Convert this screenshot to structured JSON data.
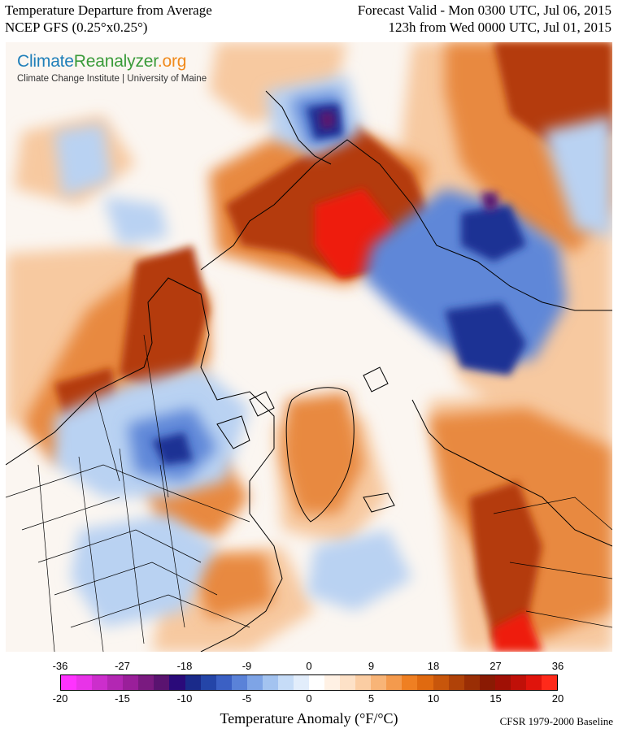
{
  "header": {
    "title_left_1": "Temperature Departure from Average",
    "title_left_2": "NCEP GFS (0.25°x0.25°)",
    "title_right_1": "Forecast Valid - Mon 0300 UTC, Jul 06, 2015",
    "title_right_2": "123h from Wed 0000 UTC, Jul 01, 2015"
  },
  "logo": {
    "part1": "Climate",
    "part2": "Reanalyzer",
    "part3": ".org",
    "subtitle": "Climate Change Institute | University of Maine"
  },
  "colorbar": {
    "fahrenheit_ticks": [
      "-36",
      "-27",
      "-18",
      "-9",
      "0",
      "9",
      "18",
      "27",
      "36"
    ],
    "celsius_ticks": [
      "-20",
      "-15",
      "-10",
      "-5",
      "0",
      "5",
      "10",
      "15",
      "20"
    ],
    "colors": [
      "#ff33ff",
      "#e833e8",
      "#cc2ecc",
      "#b327b3",
      "#9a1f9a",
      "#7a1a80",
      "#5a1370",
      "#2a0a7a",
      "#1a2a8a",
      "#2445a8",
      "#3b60c4",
      "#5a82d8",
      "#7ea4e6",
      "#a3c3f0",
      "#c6dcf7",
      "#e2edfb",
      "#ffffff",
      "#fff1e4",
      "#fde1c7",
      "#fbcda3",
      "#f8b477",
      "#f49a4d",
      "#ef7f22",
      "#e06a10",
      "#c8560b",
      "#b04208",
      "#9a2e05",
      "#8a1a03",
      "#a01005",
      "#c01008",
      "#e0140c",
      "#ff2a1a"
    ],
    "label": "Temperature Anomaly (°F/°C)",
    "baseline": "CFSR 1979-2000 Baseline"
  },
  "map": {
    "background": "#fbf6f1",
    "warm_strong": "#b43a0c",
    "warm_mid": "#e8893f",
    "warm_light": "#f7c9a0",
    "hot_core": "#ee1a10",
    "cold_light": "#b9d2f2",
    "cold_mid": "#5f87d8",
    "cold_strong": "#1d3394",
    "cold_deep": "#5a1370"
  }
}
